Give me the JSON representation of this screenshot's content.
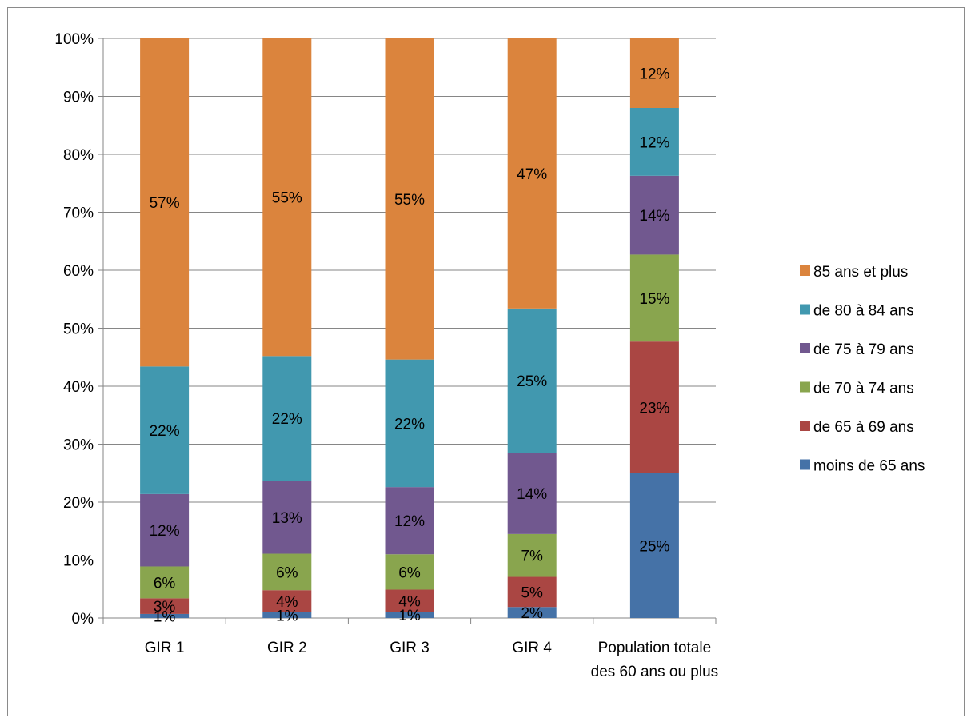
{
  "chart_data": {
    "type": "bar",
    "stacked": true,
    "percent_stacked": true,
    "categories": [
      "GIR 1",
      "GIR 2",
      "GIR 3",
      "GIR 4",
      "Population totale des 60 ans ou plus"
    ],
    "category_lines": [
      [
        "GIR 1"
      ],
      [
        "GIR 2"
      ],
      [
        "GIR 3"
      ],
      [
        "GIR 4"
      ],
      [
        "Population totale",
        "des 60 ans ou plus"
      ]
    ],
    "series": [
      {
        "name": "moins de 65 ans",
        "color": "#4572a7",
        "values": [
          0.7,
          1.0,
          1.1,
          1.9,
          25.0
        ],
        "labels": [
          "1%",
          "1%",
          "1%",
          "2%",
          "25%"
        ]
      },
      {
        "name": "de 65 à 69 ans",
        "color": "#aa4643",
        "values": [
          2.7,
          3.8,
          3.8,
          5.2,
          22.7
        ],
        "labels": [
          "3%",
          "4%",
          "4%",
          "5%",
          "23%"
        ]
      },
      {
        "name": "de 70 à 74 ans",
        "color": "#89a54e",
        "values": [
          5.5,
          6.3,
          6.1,
          7.4,
          15.0
        ],
        "labels": [
          "6%",
          "6%",
          "6%",
          "7%",
          "15%"
        ]
      },
      {
        "name": "de 75 à 79 ans",
        "color": "#71588f",
        "values": [
          12.5,
          12.6,
          11.6,
          14.0,
          13.6
        ],
        "labels": [
          "12%",
          "13%",
          "12%",
          "14%",
          "14%"
        ]
      },
      {
        "name": "de 80 à 84 ans",
        "color": "#4198af",
        "values": [
          22.0,
          21.5,
          22.0,
          24.9,
          11.7
        ],
        "labels": [
          "22%",
          "22%",
          "22%",
          "25%",
          "12%"
        ]
      },
      {
        "name": "85 ans et plus",
        "color": "#db843d",
        "values": [
          56.6,
          54.8,
          55.4,
          46.6,
          12.0
        ],
        "labels": [
          "57%",
          "55%",
          "55%",
          "47%",
          "12%"
        ]
      }
    ],
    "y_ticks": [
      "0%",
      "10%",
      "20%",
      "30%",
      "40%",
      "50%",
      "60%",
      "70%",
      "80%",
      "90%",
      "100%"
    ],
    "ylim": [
      0,
      100
    ],
    "grid": true,
    "legend_position": "right",
    "legend_order": [
      "85 ans et plus",
      "de 80 à 84 ans",
      "de 75 à 79 ans",
      "de 70 à 74 ans",
      "de 65 à 69 ans",
      "moins de 65 ans"
    ],
    "title": "",
    "xlabel": "",
    "ylabel": ""
  }
}
